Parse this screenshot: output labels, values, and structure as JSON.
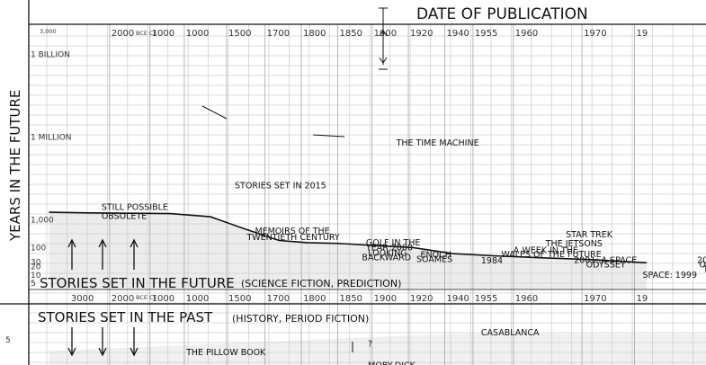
{
  "chart_data": {
    "type": "line",
    "title": "DATE OF PUBLICATION",
    "ylabel": "YEARS IN THE FUTURE",
    "x_ticks": [
      "2000",
      "1000",
      "1000",
      "1500",
      "1700",
      "1800",
      "1850",
      "1900",
      "1920",
      "1940",
      "1955",
      "1960",
      "1970",
      "19"
    ],
    "x_ticks_bottom": [
      "3000",
      "2000",
      "1000",
      "1000",
      "1500",
      "1700",
      "1800",
      "1850",
      "1900",
      "1920",
      "1940",
      "1955",
      "1960",
      "1970",
      "19"
    ],
    "x_tick_positions": [
      2,
      3,
      3.85,
      4.9,
      5.85,
      6.75,
      7.65,
      8.5,
      9.4,
      10.3,
      11.0,
      12.0,
      13.7,
      15.0
    ],
    "x_tick_positions_bottom": [
      1,
      2,
      3,
      3.85,
      4.9,
      5.85,
      6.75,
      7.65,
      8.5,
      9.4,
      10.3,
      11.0,
      12.0,
      13.7,
      15.0
    ],
    "era_labels": {
      "bce": "BCE",
      "ce": "CE"
    },
    "tiny_top": "3,000",
    "y_ticks": [
      "1 BILLION",
      "1 MILLION",
      "1,000",
      "100",
      "30",
      "20",
      "10",
      "5"
    ],
    "y_tick_values": [
      1000000000,
      1000000,
      1000,
      100,
      30,
      20,
      10,
      5
    ],
    "ylim": [
      3,
      10000000000
    ],
    "series": [
      {
        "x": [
          0.5,
          1.5,
          2.5,
          3.5,
          4.5,
          5.3,
          6.2,
          6.9,
          7.7,
          8.5,
          9.5,
          10.5,
          11.5,
          12.8,
          14.0,
          15.3
        ],
        "values": [
          1900,
          1800,
          1750,
          1700,
          1300,
          500,
          180,
          150,
          140,
          120,
          100,
          60,
          50,
          42,
          36,
          28
        ]
      }
    ],
    "future_section": {
      "heading": "STORIES SET IN THE FUTURE",
      "subheading": "(SCIENCE FICTION, PREDICTION)",
      "annotations": [
        {
          "text": "STILL POSSIBLE",
          "x": 1.8,
          "y": 2300
        },
        {
          "text": "OBSOLETE",
          "x": 1.8,
          "y": 1100
        },
        {
          "text": "STORIES SET IN 2015",
          "x": 5.1,
          "y": 14000
        },
        {
          "text": "THE TIME MACHINE",
          "x": 9.1,
          "y": 500000
        },
        {
          "text": "MEMOIRS OF THE",
          "x": 5.6,
          "y": 320
        },
        {
          "text": "TWENTIETH CENTURY",
          "x": 5.4,
          "y": 190
        },
        {
          "text": "GOLF IN THE",
          "x": 8.35,
          "y": 120
        },
        {
          "text": "YEAR 2000",
          "x": 8.35,
          "y": 78
        },
        {
          "text": "LOOKING",
          "x": 8.4,
          "y": 50
        },
        {
          "text": "BACKWARD",
          "x": 8.25,
          "y": 34
        },
        {
          "text": "ENOCH",
          "x": 9.7,
          "y": 43
        },
        {
          "text": "SOAMES",
          "x": 9.6,
          "y": 30
        },
        {
          "text": "1984",
          "x": 11.2,
          "y": 26
        },
        {
          "text": "A WEEK IN THE",
          "x": 12.0,
          "y": 62
        },
        {
          "text": "WALES OF THE FUTURE",
          "x": 11.7,
          "y": 44
        },
        {
          "text": "STAR TREK",
          "x": 13.3,
          "y": 230
        },
        {
          "text": "THE JETSONS",
          "x": 12.8,
          "y": 110
        },
        {
          "text": "2001: A SPACE",
          "x": 13.5,
          "y": 28
        },
        {
          "text": "ODYSSEY",
          "x": 13.8,
          "y": 19
        },
        {
          "text": "SPACE: 1999",
          "x": 15.2,
          "y": 8
        },
        {
          "text": "20",
          "x": 16.55,
          "y": 28
        },
        {
          "text": "ODYS",
          "x": 16.6,
          "y": 19
        },
        {
          "text": "TW",
          "x": 16.7,
          "y": 13
        }
      ]
    },
    "past_section": {
      "heading": "STORIES SET IN THE PAST",
      "subheading": "(HISTORY, PERIOD FICTION)",
      "y_tick": "5",
      "annotations": [
        {
          "text": "CASABLANCA",
          "x": 11.2,
          "depth": 0.3
        },
        {
          "text": "THE PILLOW BOOK",
          "x": 3.9,
          "depth": 1.7
        },
        {
          "text": "?",
          "x": 8.4,
          "depth": 1.1
        },
        {
          "text": "MOBY-DICK",
          "x": 8.4,
          "depth": 2.6
        }
      ]
    }
  }
}
